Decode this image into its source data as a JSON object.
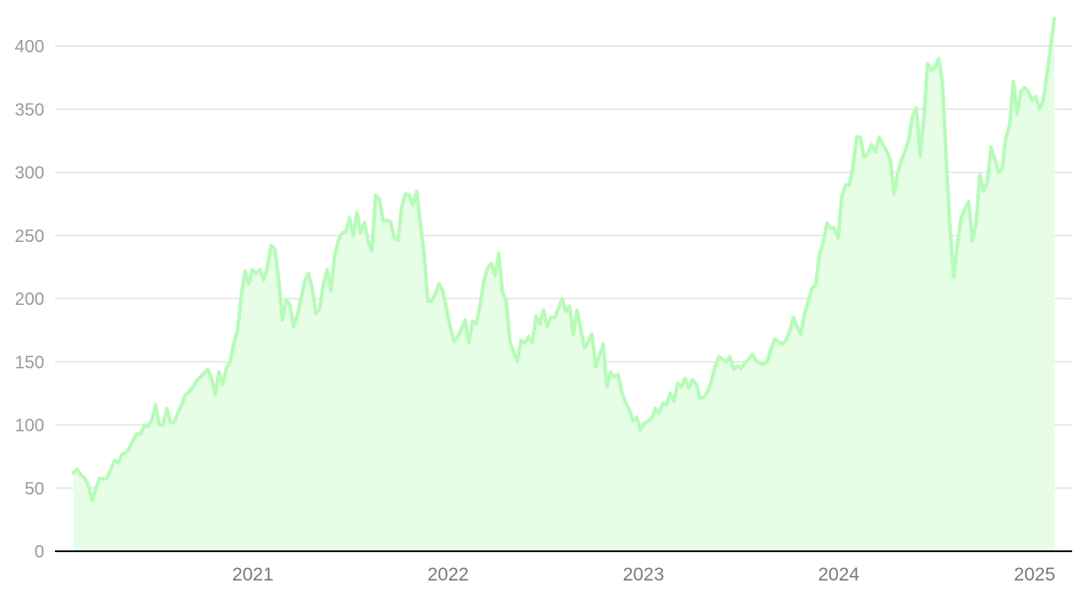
{
  "chart_data": {
    "type": "area",
    "title": "",
    "xlabel": "",
    "ylabel": "",
    "ylim": [
      0,
      420
    ],
    "yticks": [
      0,
      50,
      100,
      150,
      200,
      250,
      300,
      350,
      400
    ],
    "xticks": [
      "2021",
      "2022",
      "2023",
      "2024",
      "2025"
    ],
    "x_start": "2020-02-01",
    "x_end": "2025-02-07",
    "grid": true,
    "line_color": "#b6fbb8",
    "fill_color": "#e6fde6",
    "series": [
      {
        "values": [
          62,
          65,
          60,
          58,
          52,
          40,
          50,
          58,
          57,
          58,
          65,
          72,
          70,
          77,
          78,
          82,
          88,
          93,
          93,
          100,
          99,
          104,
          116,
          100,
          100,
          113,
          102,
          102,
          110,
          116,
          124,
          126,
          130,
          135,
          138,
          141,
          144,
          137,
          124,
          142,
          132,
          145,
          150,
          165,
          175,
          203,
          222,
          212,
          223,
          220,
          223,
          215,
          225,
          242,
          239,
          215,
          183,
          199,
          195,
          178,
          187,
          200,
          214,
          220,
          208,
          188,
          192,
          212,
          223,
          206,
          234,
          246,
          252,
          253,
          264,
          250,
          268,
          252,
          260,
          245,
          238,
          282,
          279,
          262,
          262,
          261,
          248,
          246,
          273,
          283,
          282,
          274,
          285,
          260,
          235,
          198,
          198,
          204,
          212,
          206,
          192,
          178,
          166,
          170,
          176,
          183,
          165,
          182,
          180,
          195,
          214,
          224,
          228,
          218,
          236,
          205,
          199,
          166,
          158,
          150,
          167,
          165,
          170,
          165,
          186,
          180,
          191,
          178,
          185,
          185,
          192,
          200,
          190,
          194,
          172,
          191,
          176,
          161,
          166,
          172,
          146,
          155,
          164,
          130,
          142,
          138,
          140,
          126,
          118,
          112,
          103,
          106,
          96,
          101,
          103,
          105,
          113,
          109,
          117,
          116,
          125,
          119,
          133,
          130,
          137,
          129,
          136,
          132,
          121,
          122,
          126,
          134,
          146,
          154,
          152,
          150,
          154,
          144,
          147,
          145,
          149,
          152,
          156,
          151,
          149,
          148,
          150,
          160,
          168,
          166,
          164,
          167,
          174,
          185,
          178,
          172,
          188,
          198,
          208,
          211,
          235,
          244,
          260,
          256,
          256,
          248,
          281,
          290,
          290,
          305,
          328,
          328,
          312,
          315,
          322,
          316,
          328,
          322,
          317,
          310,
          283,
          300,
          310,
          317,
          327,
          345,
          351,
          313,
          343,
          386,
          381,
          383,
          390,
          371,
          310,
          256,
          217,
          243,
          264,
          271,
          277,
          246,
          260,
          298,
          285,
          292,
          320,
          311,
          300,
          303,
          328,
          337,
          372,
          346,
          364,
          367,
          364,
          357,
          360,
          350,
          357,
          377,
          400,
          422
        ]
      }
    ]
  }
}
